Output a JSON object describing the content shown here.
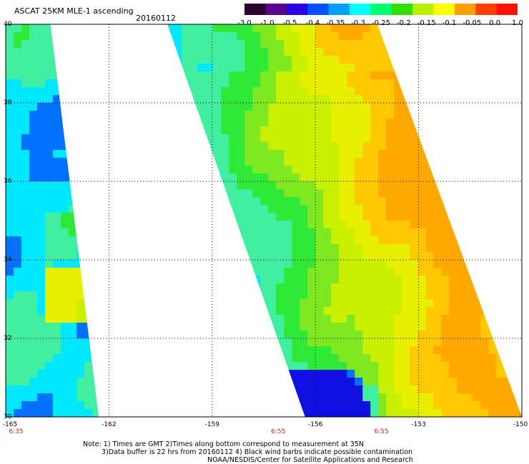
{
  "title": "ASCAT 25KM MLE-1 ascending",
  "date": "20160112",
  "colorbar": {
    "colors": [
      "#2b0030",
      "#5a008c",
      "#2a00e8",
      "#0050ff",
      "#00a0ff",
      "#00ffff",
      "#00ff70",
      "#30e000",
      "#b8f000",
      "#ffff00",
      "#ffa000",
      "#ff4000",
      "#ff1000"
    ],
    "labels": [
      "-3.0",
      "-1.0",
      "-0.5",
      "-0.4",
      "-0.35",
      "-0.3",
      "-0.25",
      "-0.2",
      "-0.15",
      "-0.1",
      "-0.05",
      "0.0",
      "1.0"
    ]
  },
  "map": {
    "lon_range": [
      -165,
      -150
    ],
    "lat_range": [
      30,
      40
    ],
    "lat_ticks": [
      "40",
      "38",
      "36",
      "34",
      "32",
      "30"
    ],
    "lon_ticks": [
      "-165",
      "-162",
      "-159",
      "-156",
      "-153",
      "-150"
    ],
    "time_labels": [
      "6:35",
      "6:55",
      "6:55"
    ],
    "swaths": [
      {
        "name": "west-swath",
        "lon_edges_bottom": [
          -165,
          -162.3
        ],
        "lon_edges_top": [
          -165,
          -163.7
        ]
      },
      {
        "name": "east-swath",
        "lon_edges_bottom": [
          -156.3,
          -150
        ],
        "lon_edges_top": [
          -160.3,
          -154.2
        ]
      }
    ],
    "values_colors": {
      "low": "#1010e0",
      "cyan": "#00e8ff",
      "green": "#30e838",
      "yellow": "#e8f000",
      "orange": "#ffa800"
    }
  },
  "notes": {
    "line1": "Note: 1) Times are GMT 2)Times along bottom correspond to measurement at 35N",
    "line2": "3)Data buffer is 22 hrs from 20160112 4) Black wind barbs indicate possible contamination",
    "line3": "NOAA/NESDIS/Center for Satellite Applications and Research"
  }
}
